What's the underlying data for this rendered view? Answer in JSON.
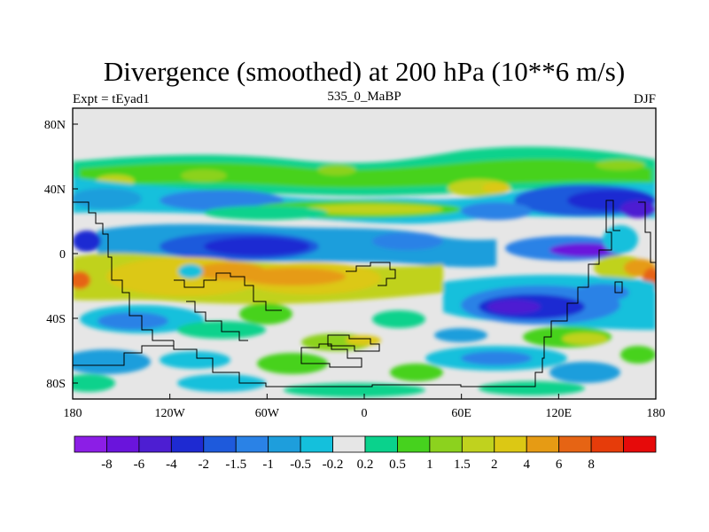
{
  "title": "Divergence (smoothed) at 200 hPa (10**6 m/s)",
  "left_label": "Expt = tEyad1",
  "center_label": "535_0_MaBP",
  "right_label": "DJF",
  "lat_ticks": [
    "80N",
    "40N",
    "0",
    "40S",
    "80S"
  ],
  "lon_ticks": [
    "180",
    "120W",
    "60W",
    "0",
    "60E",
    "120E",
    "180"
  ],
  "colorbar": {
    "colors": [
      "#8c1ee6",
      "#6a14dc",
      "#4d1ed2",
      "#1e2ad2",
      "#1e5adc",
      "#2a82e6",
      "#1e9edc",
      "#14c0dc",
      "#e6e6e6",
      "#0ad28c",
      "#46d21e",
      "#8cd21e",
      "#c0d21e",
      "#dcc814",
      "#e69b14",
      "#e66414",
      "#e63c0a",
      "#e60a0a"
    ],
    "labels": [
      "-8",
      "-6",
      "-4",
      "-2",
      "-1.5",
      "-1",
      "-0.5",
      "-0.2",
      "0.2",
      "0.5",
      "1",
      "1.5",
      "2",
      "4",
      "6",
      "8"
    ]
  },
  "chart_data": {
    "type": "heatmap",
    "title": "Divergence (smoothed) at 200 hPa (10**6 m/s)",
    "variable": "Divergence (smoothed)",
    "level": "200 hPa",
    "units": "10**6 m/s",
    "experiment": "tEyad1",
    "period": "535_0_MaBP",
    "season": "DJF",
    "xlim": [
      -180,
      180
    ],
    "ylim": [
      -90,
      90
    ],
    "contour_levels": [
      -8,
      -6,
      -4,
      -2,
      -1.5,
      -1,
      -0.5,
      -0.2,
      0.2,
      0.5,
      1,
      1.5,
      2,
      4,
      6,
      8
    ],
    "features": [
      {
        "name": "equatorial-convergence-band",
        "lon": [
          -120,
          -10
        ],
        "lat": [
          -5,
          10
        ],
        "value": -4
      },
      {
        "name": "south-pacific-divergence",
        "lon": [
          -150,
          -30
        ],
        "lat": [
          -25,
          -5
        ],
        "value": 4
      },
      {
        "name": "south-pacific-max",
        "lon": [
          -90,
          -30
        ],
        "lat": [
          -20,
          -10
        ],
        "value": 6
      },
      {
        "name": "east-convergence-band",
        "lon": [
          90,
          180
        ],
        "lat": [
          -35,
          -15
        ],
        "value": -4
      },
      {
        "name": "north-convergence-band",
        "lon": [
          120,
          180
        ],
        "lat": [
          20,
          35
        ],
        "value": -4
      },
      {
        "name": "west-pacific-max",
        "lon": [
          160,
          180
        ],
        "lat": [
          -25,
          -10
        ],
        "value": 6
      }
    ]
  }
}
